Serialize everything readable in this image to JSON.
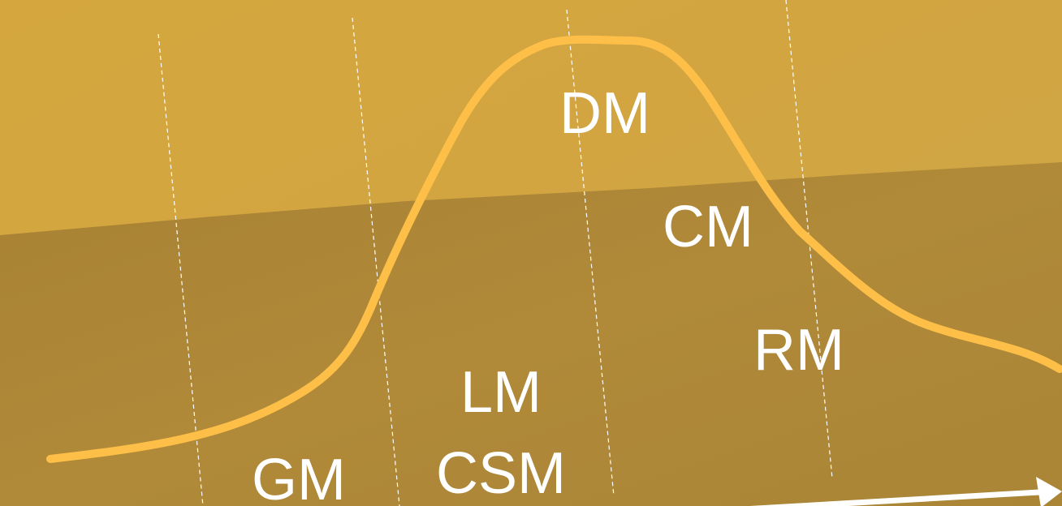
{
  "colors": {
    "background_upper": "#d1a43e",
    "background_lower": "#ac8636",
    "curve": "#fdbf47",
    "divider": "#ffffff",
    "arrow": "#ffffff",
    "label": "#ffffff"
  },
  "diagram": {
    "labels": {
      "gm": "GM",
      "lm": "LM",
      "csm": "CSM",
      "dm": "DM",
      "cm": "CM",
      "rm": "RM"
    }
  }
}
